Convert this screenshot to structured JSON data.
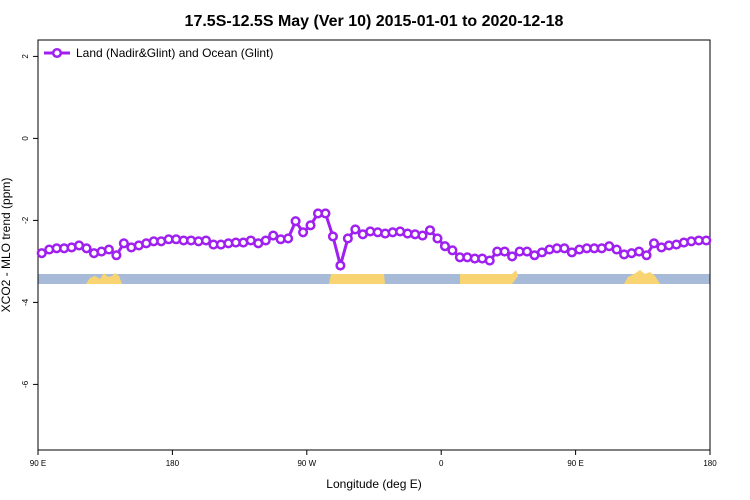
{
  "chart_data": {
    "type": "line",
    "title": "17.5S-12.5S May (Ver 10)   2015-01-01 to 2020-12-18",
    "xlabel": "Longitude (deg E)",
    "ylabel": "XCO2 - MLO trend (ppm)",
    "xlim": [
      90,
      540
    ],
    "ylim": [
      -7.6,
      2.4
    ],
    "xticks": [
      {
        "value": 90,
        "label": "90 E"
      },
      180,
      {
        "value": 270,
        "label": "90 W"
      },
      {
        "value": 360,
        "label": "0"
      },
      {
        "value": 450,
        "label": "90 E"
      },
      {
        "value": 540,
        "label": "180"
      }
    ],
    "yticks": [
      2,
      0,
      -2,
      -4,
      -6
    ],
    "legend": "top-left",
    "x": [
      92.5,
      97.5,
      102.5,
      107.5,
      112.5,
      117.5,
      122.5,
      127.5,
      132.5,
      137.5,
      142.5,
      147.5,
      152.5,
      157.5,
      162.5,
      167.5,
      172.5,
      177.5,
      182.5,
      187.5,
      192.5,
      197.5,
      202.5,
      207.5,
      212.5,
      217.5,
      222.5,
      227.5,
      232.5,
      237.5,
      242.5,
      247.5,
      252.5,
      257.5,
      262.5,
      267.5,
      272.5,
      277.5,
      282.5,
      287.5,
      292.5,
      297.5,
      302.5,
      307.5,
      312.5,
      317.5,
      322.5,
      327.5,
      332.5,
      337.5,
      342.5,
      347.5,
      352.5,
      357.5,
      362.5,
      367.5,
      372.5,
      377.5,
      382.5,
      387.5,
      392.5,
      397.5,
      402.5,
      407.5,
      412.5,
      417.5,
      422.5,
      427.5,
      432.5,
      437.5,
      442.5,
      447.5,
      452.5,
      457.5,
      462.5,
      467.5,
      472.5,
      477.5,
      482.5,
      487.5,
      492.5,
      497.5,
      502.5,
      507.5,
      512.5,
      517.5,
      522.5,
      527.5,
      532.5,
      537.5
    ],
    "series": [
      {
        "name": "Land (Nadir&Glint) and Ocean (Glint)",
        "color": "#a020f0",
        "values": [
          -2.8,
          -2.71,
          -2.68,
          -2.68,
          -2.66,
          -2.61,
          -2.68,
          -2.8,
          -2.76,
          -2.71,
          -2.85,
          -2.56,
          -2.66,
          -2.61,
          -2.56,
          -2.51,
          -2.51,
          -2.46,
          -2.46,
          -2.49,
          -2.49,
          -2.51,
          -2.49,
          -2.59,
          -2.59,
          -2.56,
          -2.54,
          -2.54,
          -2.49,
          -2.56,
          -2.49,
          -2.37,
          -2.46,
          -2.44,
          -2.02,
          -2.29,
          -2.12,
          -1.83,
          -1.83,
          -2.39,
          -3.1,
          -2.44,
          -2.22,
          -2.34,
          -2.27,
          -2.29,
          -2.32,
          -2.29,
          -2.27,
          -2.32,
          -2.34,
          -2.37,
          -2.24,
          -2.44,
          -2.63,
          -2.73,
          -2.9,
          -2.9,
          -2.93,
          -2.93,
          -2.98,
          -2.76,
          -2.76,
          -2.88,
          -2.76,
          -2.76,
          -2.85,
          -2.78,
          -2.71,
          -2.68,
          -2.68,
          -2.78,
          -2.71,
          -2.68,
          -2.68,
          -2.68,
          -2.63,
          -2.71,
          -2.83,
          -2.8,
          -2.76,
          -2.85,
          -2.56,
          -2.66,
          -2.61,
          -2.59,
          -2.54,
          -2.51,
          -2.49,
          -2.49
        ]
      }
    ]
  }
}
